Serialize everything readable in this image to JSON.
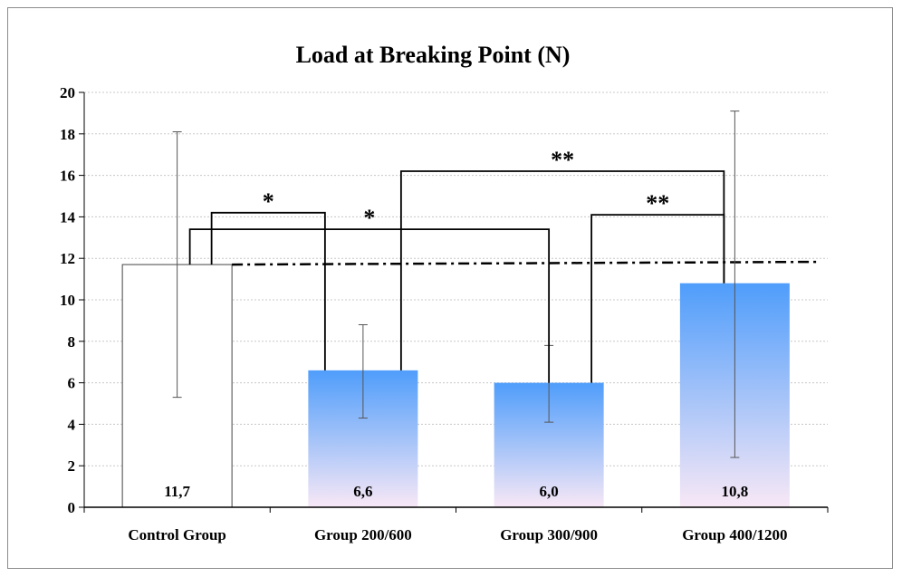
{
  "chart_data": {
    "type": "bar",
    "title": "Load at Breaking Point (N)",
    "categories": [
      "Control Group",
      "Group 200/600",
      "Group 300/900",
      "Group 400/1200"
    ],
    "values": [
      11.7,
      6.6,
      6.0,
      10.8
    ],
    "value_labels": [
      "11,7",
      "6,6",
      "6,0",
      "10,8"
    ],
    "error_low": [
      5.3,
      4.3,
      4.1,
      2.4
    ],
    "error_high": [
      18.1,
      8.8,
      7.8,
      19.1
    ],
    "ylim": [
      0,
      20
    ],
    "yticks": [
      0,
      2,
      4,
      6,
      8,
      10,
      12,
      14,
      16,
      18,
      20
    ],
    "reference_line": {
      "value": 11.7,
      "style": "dash-dot"
    },
    "grid": true,
    "bar_colors": {
      "control": "#ffffff",
      "gradient_top": "#4f9dfb",
      "gradient_bottom": "#f8e8f6"
    },
    "significance": [
      {
        "from": 0,
        "to": 1,
        "level": 14.2,
        "label": "*"
      },
      {
        "from": 0,
        "to": 2,
        "level": 13.4,
        "label": "*"
      },
      {
        "from": 1,
        "to": 3,
        "level": 16.2,
        "label": "**"
      },
      {
        "from": 2,
        "to": 3,
        "level": 14.1,
        "label": "**"
      }
    ]
  }
}
